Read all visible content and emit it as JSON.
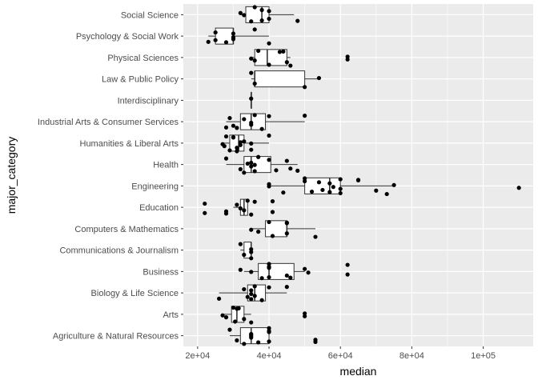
{
  "chart_data": {
    "type": "boxplot-jitter",
    "orientation": "horizontal",
    "xlabel": "median",
    "ylabel": "major_category",
    "xlim": [
      16000,
      114000
    ],
    "x_ticks": [
      20000,
      40000,
      60000,
      80000,
      100000
    ],
    "x_tick_labels": [
      "2e+04",
      "4e+04",
      "6e+04",
      "8e+04",
      "1e+05"
    ],
    "grid": true,
    "background": "#EBEBEB",
    "categories": [
      {
        "name": "Agriculture & Natural Resources",
        "box": {
          "min": 29000,
          "q1": 32000,
          "median": 35000,
          "q3": 40000,
          "max": 40000
        },
        "points": [
          29000,
          31000,
          33000,
          35000,
          35000,
          35000,
          35000,
          37000,
          40000,
          40000,
          40000,
          40000,
          53000,
          53000
        ]
      },
      {
        "name": "Arts",
        "box": {
          "min": 27000,
          "q1": 29500,
          "median": 31000,
          "q3": 33000,
          "max": 35000
        },
        "points": [
          27000,
          28000,
          30000,
          30500,
          31000,
          31500,
          33000,
          35000,
          50000,
          50000
        ]
      },
      {
        "name": "Biology & Life Science",
        "box": {
          "min": 26000,
          "q1": 34000,
          "median": 36000,
          "q3": 39000,
          "max": 45000
        },
        "points": [
          26000,
          33000,
          34000,
          35000,
          35000,
          35000,
          36000,
          36000,
          38000,
          40000,
          45000
        ]
      },
      {
        "name": "Business",
        "box": {
          "min": 33000,
          "q1": 37000,
          "median": 40000,
          "q3": 47000,
          "max": 50000
        },
        "points": [
          32000,
          35000,
          38000,
          40000,
          40000,
          40000,
          40000,
          45000,
          46000,
          50000,
          51000,
          62000,
          62000
        ]
      },
      {
        "name": "Communications & Journalism",
        "box": {
          "min": 32000,
          "q1": 33000,
          "median": 35000,
          "q3": 35000,
          "max": 35000
        },
        "points": [
          32000,
          33000,
          35000,
          35000,
          35000
        ]
      },
      {
        "name": "Computers & Mathematics",
        "box": {
          "min": 35000,
          "q1": 39000,
          "median": 45000,
          "q3": 45000,
          "max": 53000
        },
        "points": [
          35000,
          37000,
          40000,
          41000,
          45000,
          45000,
          45000,
          53000
        ]
      },
      {
        "name": "Education",
        "box": {
          "min": 30000,
          "q1": 32000,
          "median": 33000,
          "q3": 34000,
          "max": 34000
        },
        "points": [
          22000,
          22000,
          28000,
          28000,
          31000,
          32000,
          33000,
          34000,
          35000,
          36000,
          41000,
          41000
        ]
      },
      {
        "name": "Engineering",
        "box": {
          "min": 40000,
          "q1": 50000,
          "median": 57000,
          "q3": 60000,
          "max": 75000
        },
        "points": [
          40000,
          40000,
          44000,
          50000,
          50000,
          52000,
          54000,
          55000,
          57000,
          57000,
          58000,
          60000,
          60000,
          60000,
          65000,
          65000,
          70000,
          73000,
          75000,
          110000
        ]
      },
      {
        "name": "Health",
        "box": {
          "min": 28000,
          "q1": 33000,
          "median": 35000,
          "q3": 40500,
          "max": 48000
        },
        "points": [
          28000,
          32000,
          33000,
          34000,
          35000,
          35000,
          36000,
          36000,
          37000,
          40000,
          42000,
          45000,
          46000,
          48000
        ]
      },
      {
        "name": "Humanities & Liberal Arts",
        "box": {
          "min": 27000,
          "q1": 29000,
          "median": 31500,
          "q3": 33000,
          "max": 40000
        },
        "points": [
          27000,
          27500,
          28000,
          29000,
          30000,
          30000,
          31000,
          31000,
          32000,
          32000,
          33000,
          35000,
          35000,
          40000
        ]
      },
      {
        "name": "Industrial Arts & Consumer Services",
        "box": {
          "min": 28000,
          "q1": 32000,
          "median": 35000,
          "q3": 39000,
          "max": 50000
        },
        "points": [
          28000,
          29000,
          30000,
          31000,
          33000,
          35000,
          35000,
          36000,
          38000,
          40000,
          50000
        ]
      },
      {
        "name": "Interdisciplinary",
        "box": {
          "min": 35000,
          "q1": 35000,
          "median": 35000,
          "q3": 35000,
          "max": 35000
        },
        "points": [
          35000
        ]
      },
      {
        "name": "Law & Public Policy",
        "box": {
          "min": 35000,
          "q1": 36000,
          "median": 36000,
          "q3": 50000,
          "max": 54000
        },
        "points": [
          35000,
          36000,
          50000,
          54000
        ]
      },
      {
        "name": "Physical Sciences",
        "box": {
          "min": 35000,
          "q1": 36000,
          "median": 39500,
          "q3": 45000,
          "max": 46000
        },
        "points": [
          35000,
          36000,
          37000,
          40000,
          43000,
          44000,
          45000,
          46000,
          62000,
          62000
        ]
      },
      {
        "name": "Psychology & Social Work",
        "box": {
          "min": 23000,
          "q1": 25000,
          "median": 30000,
          "q3": 30000,
          "max": 40000
        },
        "points": [
          23000,
          25000,
          25000,
          28000,
          30000,
          30000,
          30000,
          36000,
          40000
        ]
      },
      {
        "name": "Social Science",
        "box": {
          "min": 32000,
          "q1": 33500,
          "median": 38000,
          "q3": 40000,
          "max": 47000
        },
        "points": [
          32000,
          33000,
          35000,
          36000,
          38000,
          38000,
          40000,
          40000,
          48000
        ]
      }
    ]
  }
}
